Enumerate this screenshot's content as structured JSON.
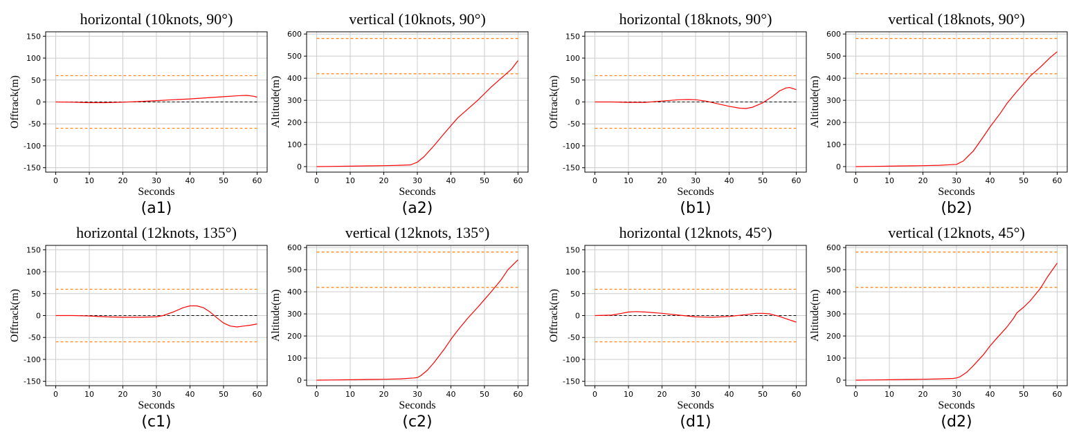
{
  "colors": {
    "trajectory": "#ff0000",
    "bounds": "#ff7f0e",
    "reference": "#000000",
    "grid": "#cccccc"
  },
  "chart_data": [
    {
      "id": "a1",
      "type": "line",
      "label": "(a1)",
      "title": "horizontal (10knots, 90°)",
      "xlabel": "Seconds",
      "ylabel": "Offtrack(m)",
      "xlim": [
        -3,
        63
      ],
      "ylim": [
        -160,
        160
      ],
      "xticks": [
        0,
        10,
        20,
        30,
        40,
        50,
        60
      ],
      "yticks": [
        -150,
        -100,
        -50,
        0,
        50,
        100,
        150
      ],
      "bounds": [
        60,
        -60
      ],
      "reference": 0,
      "series": [
        {
          "name": "trajectory",
          "x": [
            0,
            5,
            10,
            15,
            20,
            25,
            30,
            35,
            40,
            45,
            50,
            55,
            57,
            59,
            60
          ],
          "y": [
            0,
            -0.5,
            -1.5,
            -1.5,
            -0.5,
            1,
            3,
            5,
            7,
            9.5,
            12,
            14.5,
            15,
            13,
            11
          ]
        }
      ]
    },
    {
      "id": "a2",
      "type": "line",
      "label": "(a2)",
      "title": "vertical (10knots, 90°)",
      "xlabel": "Seconds",
      "ylabel": "Altitude(m)",
      "xlim": [
        -3,
        63
      ],
      "ylim": [
        -25,
        610
      ],
      "xticks": [
        0,
        10,
        20,
        30,
        40,
        50,
        60
      ],
      "yticks": [
        0,
        100,
        200,
        300,
        400,
        500,
        600
      ],
      "bounds": [
        580,
        420
      ],
      "series": [
        {
          "name": "trajectory",
          "x": [
            0,
            5,
            10,
            15,
            20,
            25,
            28,
            30,
            32,
            35,
            38,
            40,
            42,
            45,
            48,
            50,
            52,
            55,
            58,
            60
          ],
          "y": [
            0,
            1,
            2,
            3,
            4,
            6,
            8,
            20,
            45,
            95,
            150,
            185,
            220,
            260,
            300,
            330,
            360,
            400,
            440,
            480
          ]
        }
      ]
    },
    {
      "id": "b1",
      "type": "line",
      "label": "(b1)",
      "title": "horizontal (18knots, 90°)",
      "xlabel": "Seconds",
      "ylabel": "Offtrack(m)",
      "xlim": [
        -3,
        63
      ],
      "ylim": [
        -160,
        160
      ],
      "xticks": [
        0,
        10,
        20,
        30,
        40,
        50,
        60
      ],
      "yticks": [
        -150,
        -100,
        -50,
        0,
        50,
        100,
        150
      ],
      "bounds": [
        60,
        -60
      ],
      "reference": 0,
      "series": [
        {
          "name": "trajectory",
          "x": [
            0,
            5,
            10,
            15,
            20,
            25,
            28,
            30,
            33,
            36,
            40,
            43,
            45,
            47,
            50,
            53,
            55,
            57,
            58,
            60
          ],
          "y": [
            0,
            0,
            -1,
            -1,
            2,
            5,
            5.5,
            5,
            2,
            -3,
            -10,
            -14,
            -15,
            -12,
            -2,
            13,
            25,
            32,
            33,
            28
          ]
        }
      ]
    },
    {
      "id": "b2",
      "type": "line",
      "label": "(b2)",
      "title": "vertical (18knots, 90°)",
      "xlabel": "Seconds",
      "ylabel": "Altitude(m)",
      "xlim": [
        -3,
        63
      ],
      "ylim": [
        -25,
        610
      ],
      "xticks": [
        0,
        10,
        20,
        30,
        40,
        50,
        60
      ],
      "yticks": [
        0,
        100,
        200,
        300,
        400,
        500,
        600
      ],
      "bounds": [
        580,
        420
      ],
      "series": [
        {
          "name": "trajectory",
          "x": [
            0,
            5,
            10,
            15,
            20,
            25,
            30,
            32,
            35,
            38,
            40,
            43,
            45,
            48,
            50,
            52,
            55,
            58,
            60
          ],
          "y": [
            0,
            1,
            2,
            3,
            4,
            6,
            10,
            25,
            70,
            135,
            180,
            240,
            285,
            340,
            375,
            410,
            450,
            495,
            520
          ]
        }
      ]
    },
    {
      "id": "c1",
      "type": "line",
      "label": "(c1)",
      "title": "horizontal (12knots, 135°)",
      "xlabel": "Seconds",
      "ylabel": "Offtrack(m)",
      "xlim": [
        -3,
        63
      ],
      "ylim": [
        -160,
        160
      ],
      "xticks": [
        0,
        10,
        20,
        30,
        40,
        50,
        60
      ],
      "yticks": [
        -150,
        -100,
        -50,
        0,
        50,
        100,
        150
      ],
      "bounds": [
        60,
        -60
      ],
      "reference": 0,
      "series": [
        {
          "name": "trajectory",
          "x": [
            0,
            5,
            10,
            15,
            20,
            25,
            30,
            32,
            35,
            38,
            40,
            42,
            44,
            46,
            48,
            50,
            52,
            54,
            56,
            58,
            60
          ],
          "y": [
            0,
            0,
            -1,
            -3,
            -4,
            -4,
            -3,
            0,
            8,
            18,
            22,
            22,
            18,
            8,
            -5,
            -17,
            -24,
            -26,
            -24,
            -22,
            -19
          ]
        }
      ]
    },
    {
      "id": "c2",
      "type": "line",
      "label": "(c2)",
      "title": "vertical (12knots, 135°)",
      "xlabel": "Seconds",
      "ylabel": "Altitude(m)",
      "xlim": [
        -3,
        63
      ],
      "ylim": [
        -25,
        610
      ],
      "xticks": [
        0,
        10,
        20,
        30,
        40,
        50,
        60
      ],
      "yticks": [
        0,
        100,
        200,
        300,
        400,
        500,
        600
      ],
      "bounds": [
        580,
        420
      ],
      "series": [
        {
          "name": "trajectory",
          "x": [
            0,
            5,
            10,
            15,
            20,
            25,
            29,
            30,
            31,
            33,
            35,
            38,
            40,
            42,
            45,
            48,
            50,
            52,
            55,
            57,
            60
          ],
          "y": [
            0,
            1,
            2,
            3,
            4,
            6,
            10,
            12,
            20,
            45,
            80,
            140,
            185,
            225,
            280,
            330,
            365,
            400,
            455,
            500,
            545
          ]
        }
      ]
    },
    {
      "id": "d1",
      "type": "line",
      "label": "(d1)",
      "title": "horizontal (12knots, 45°)",
      "xlabel": "Seconds",
      "ylabel": "Offtrack(m)",
      "xlim": [
        -3,
        63
      ],
      "ylim": [
        -160,
        160
      ],
      "xticks": [
        0,
        10,
        20,
        30,
        40,
        50,
        60
      ],
      "yticks": [
        -150,
        -100,
        -50,
        0,
        50,
        100,
        150
      ],
      "bounds": [
        60,
        -60
      ],
      "reference": 0,
      "series": [
        {
          "name": "trajectory",
          "x": [
            0,
            5,
            8,
            10,
            12,
            15,
            20,
            25,
            30,
            35,
            40,
            45,
            48,
            50,
            52,
            55,
            58,
            60
          ],
          "y": [
            0,
            1,
            5,
            8,
            9,
            8,
            5,
            1,
            -3,
            -4,
            -2,
            2,
            5,
            5,
            4,
            -2,
            -10,
            -15
          ]
        }
      ]
    },
    {
      "id": "d2",
      "type": "line",
      "label": "(d2)",
      "title": "vertical (12knots, 45°)",
      "xlabel": "Seconds",
      "ylabel": "Altitude(m)",
      "xlim": [
        -3,
        63
      ],
      "ylim": [
        -25,
        610
      ],
      "xticks": [
        0,
        10,
        20,
        30,
        40,
        50,
        60
      ],
      "yticks": [
        0,
        100,
        200,
        300,
        400,
        500,
        600
      ],
      "bounds": [
        580,
        420
      ],
      "series": [
        {
          "name": "trajectory",
          "x": [
            0,
            5,
            10,
            15,
            20,
            25,
            29,
            30,
            31,
            33,
            35,
            38,
            40,
            42,
            45,
            47,
            48,
            50,
            52,
            55,
            57,
            60
          ],
          "y": [
            0,
            1,
            2,
            3,
            4,
            6,
            8,
            10,
            15,
            35,
            65,
            115,
            155,
            190,
            240,
            280,
            305,
            330,
            360,
            415,
            465,
            530
          ]
        }
      ]
    }
  ]
}
